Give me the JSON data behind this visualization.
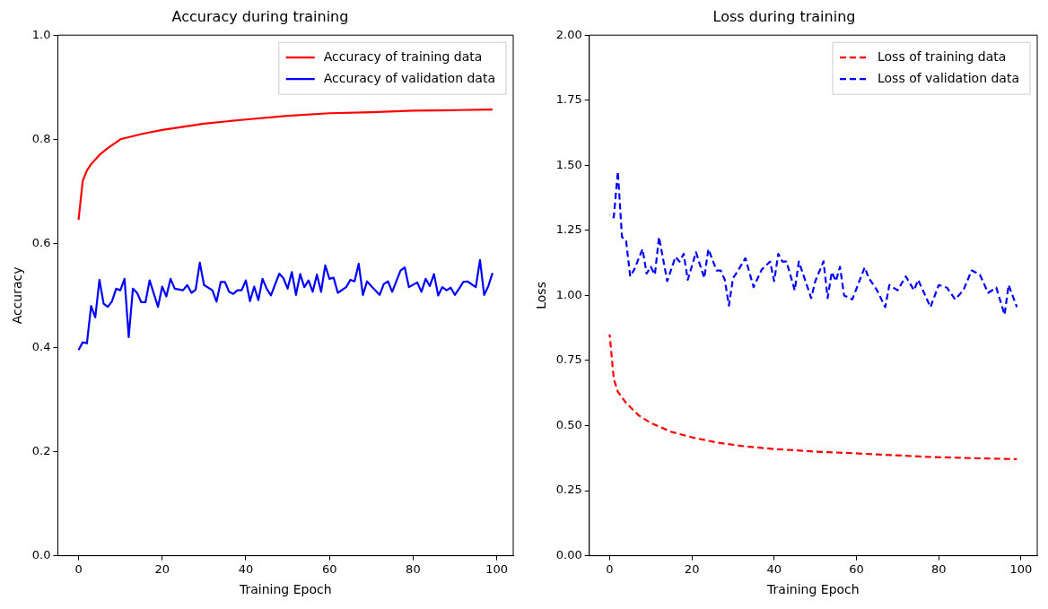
{
  "chart_data": [
    {
      "type": "line",
      "title": "Accuracy during training",
      "xlabel": "Training Epoch",
      "ylabel": "Accuracy",
      "xlim": [
        -4.95,
        103.95
      ],
      "xticks": [
        0,
        20,
        40,
        60,
        80,
        100
      ],
      "ylim": [
        0,
        1
      ],
      "yticks": [
        {
          "value": 0,
          "label": "0.0"
        },
        0.2,
        0.4,
        0.6,
        0.8,
        {
          "value": 1,
          "label": "1.0"
        }
      ],
      "legend": "top right",
      "grid": false,
      "marker": "none",
      "series": [
        {
          "name": "Accuracy of training data",
          "color": "#ff0000",
          "line_style": "solid",
          "x": [
            0,
            1,
            2,
            3,
            5,
            7,
            10,
            15,
            20,
            25,
            30,
            40,
            50,
            60,
            70,
            80,
            90,
            99
          ],
          "values": [
            0.645,
            0.72,
            0.74,
            0.752,
            0.77,
            0.783,
            0.8,
            0.81,
            0.818,
            0.824,
            0.83,
            0.838,
            0.845,
            0.85,
            0.852,
            0.855,
            0.856,
            0.857
          ]
        },
        {
          "name": "Accuracy of validation data",
          "color": "#0000ff",
          "line_style": "solid",
          "x": [
            0,
            1,
            2,
            3,
            4,
            5,
            6,
            7,
            8,
            9,
            10,
            11,
            12,
            13,
            14,
            15,
            16,
            17,
            19,
            20,
            21,
            22,
            23,
            25,
            26,
            27,
            28,
            29,
            30,
            32,
            33,
            34,
            35,
            36,
            37,
            38,
            39,
            40,
            41,
            42,
            43,
            44,
            45,
            46,
            48,
            49,
            50,
            51,
            52,
            53,
            54,
            55,
            56,
            57,
            58,
            59,
            60,
            61,
            62,
            64,
            65,
            66,
            67,
            68,
            69,
            70,
            72,
            73,
            74,
            75,
            77,
            78,
            79,
            81,
            82,
            83,
            84,
            85,
            86,
            87,
            88,
            89,
            90,
            91,
            92,
            93,
            95,
            96,
            97,
            98,
            99
          ],
          "values": [
            0.395,
            0.41,
            0.408,
            0.48,
            0.458,
            0.53,
            0.484,
            0.478,
            0.489,
            0.513,
            0.51,
            0.532,
            0.42,
            0.513,
            0.505,
            0.487,
            0.487,
            0.529,
            0.478,
            0.517,
            0.498,
            0.532,
            0.513,
            0.51,
            0.52,
            0.505,
            0.511,
            0.563,
            0.52,
            0.51,
            0.488,
            0.526,
            0.526,
            0.507,
            0.503,
            0.51,
            0.51,
            0.529,
            0.489,
            0.517,
            0.491,
            0.532,
            0.513,
            0.5,
            0.542,
            0.533,
            0.513,
            0.545,
            0.501,
            0.541,
            0.516,
            0.529,
            0.507,
            0.54,
            0.507,
            0.558,
            0.532,
            0.534,
            0.505,
            0.516,
            0.53,
            0.527,
            0.561,
            0.501,
            0.527,
            0.518,
            0.501,
            0.522,
            0.527,
            0.507,
            0.548,
            0.554,
            0.516,
            0.525,
            0.507,
            0.532,
            0.518,
            0.541,
            0.5,
            0.516,
            0.51,
            0.515,
            0.501,
            0.513,
            0.526,
            0.527,
            0.516,
            0.568,
            0.501,
            0.518,
            0.543
          ]
        }
      ]
    },
    {
      "type": "line",
      "title": "Loss during training",
      "xlabel": "Training Epoch",
      "ylabel": "Loss",
      "xlim": [
        -4.95,
        103.95
      ],
      "xticks": [
        0,
        20,
        40,
        60,
        80,
        100
      ],
      "ylim": [
        0,
        2
      ],
      "yticks": [
        {
          "value": 0,
          "label": "0.00"
        },
        {
          "value": 0.25,
          "label": "0.25"
        },
        {
          "value": 0.5,
          "label": "0.50"
        },
        {
          "value": 0.75,
          "label": "0.75"
        },
        {
          "value": 1,
          "label": "1.00"
        },
        {
          "value": 1.25,
          "label": "1.25"
        },
        {
          "value": 1.5,
          "label": "1.50"
        },
        {
          "value": 1.75,
          "label": "1.75"
        },
        {
          "value": 2,
          "label": "2.00"
        }
      ],
      "legend": "top right",
      "grid": false,
      "marker": "none",
      "series": [
        {
          "name": "Loss of training data",
          "color": "#ff0000",
          "line_style": "dashed",
          "x": [
            0,
            1,
            2,
            4,
            7,
            10,
            15,
            20,
            26,
            33,
            40,
            50,
            59,
            68,
            77,
            88,
            99
          ],
          "values": [
            0.85,
            0.68,
            0.63,
            0.587,
            0.54,
            0.51,
            0.476,
            0.455,
            0.435,
            0.42,
            0.41,
            0.4,
            0.394,
            0.387,
            0.38,
            0.375,
            0.371
          ]
        },
        {
          "name": "Loss of validation data",
          "color": "#0000ff",
          "line_style": "dashed",
          "x": [
            0,
            1,
            2,
            3,
            4,
            5,
            6,
            8,
            9,
            10,
            11,
            12,
            13,
            14,
            16,
            17,
            18,
            19,
            21,
            23,
            24,
            26,
            27,
            28,
            29,
            30,
            31,
            33,
            35,
            37,
            39,
            40,
            41,
            42,
            43,
            45,
            46,
            49,
            50,
            52,
            53,
            54,
            55,
            56,
            57,
            59,
            62,
            63,
            65,
            67,
            68,
            70,
            72,
            74,
            75,
            78,
            80,
            82,
            84,
            86,
            88,
            90,
            92,
            94,
            96,
            97,
            99
          ],
          "values": [
            1.312,
            1.3,
            1.476,
            1.225,
            1.21,
            1.073,
            1.1,
            1.178,
            1.084,
            1.11,
            1.08,
            1.225,
            1.14,
            1.055,
            1.148,
            1.13,
            1.16,
            1.06,
            1.166,
            1.067,
            1.178,
            1.096,
            1.096,
            1.06,
            0.961,
            1.067,
            1.09,
            1.143,
            1.032,
            1.1,
            1.13,
            1.055,
            1.16,
            1.13,
            1.13,
            1.02,
            1.13,
            0.99,
            1.055,
            1.131,
            0.99,
            1.09,
            1.055,
            1.11,
            1.0,
            0.985,
            1.108,
            1.067,
            1.02,
            0.955,
            1.04,
            1.02,
            1.073,
            1.02,
            1.06,
            0.955,
            1.04,
            1.03,
            0.985,
            1.02,
            1.096,
            1.08,
            1.01,
            1.03,
            0.926,
            1.04,
            0.955
          ]
        }
      ]
    }
  ]
}
